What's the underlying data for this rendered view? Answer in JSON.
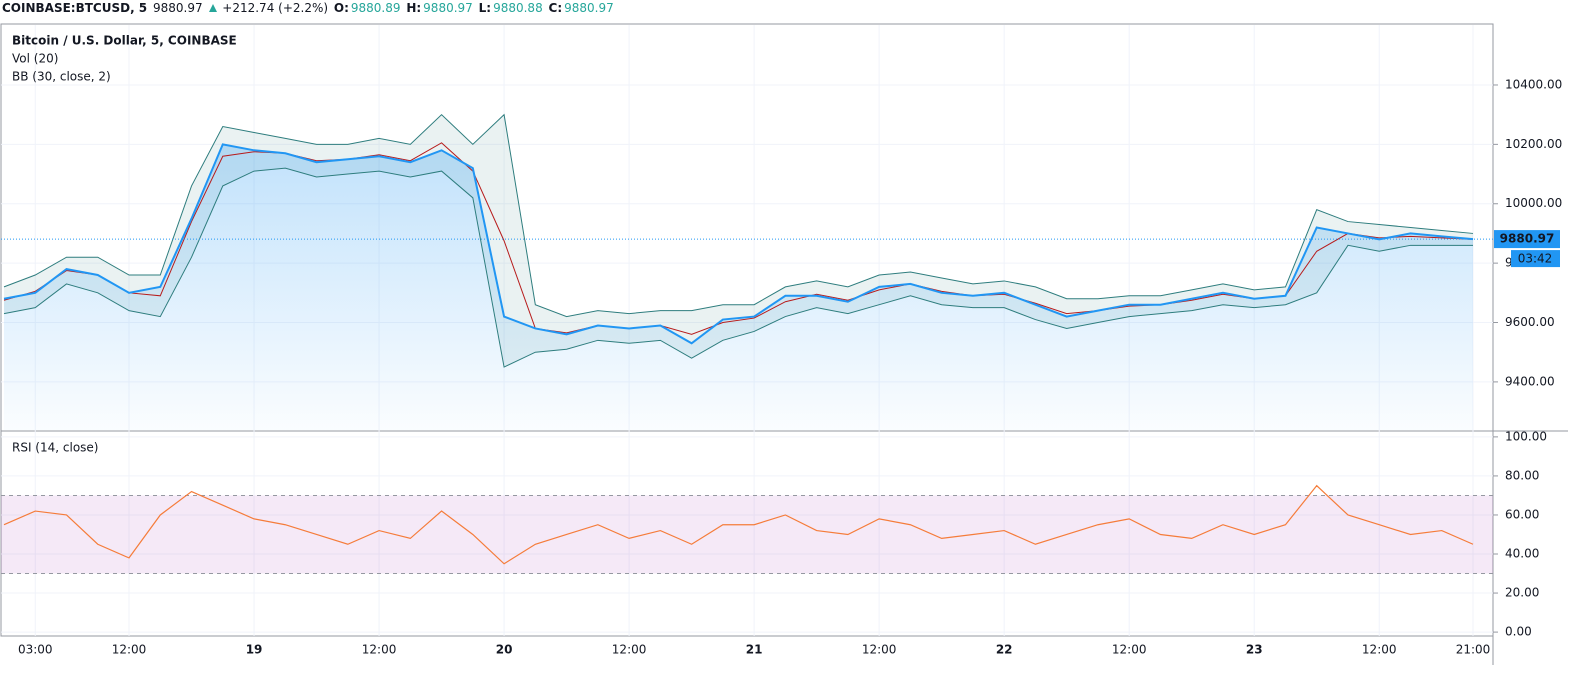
{
  "header": {
    "symbol": "COINBASE:BTCUSD, 5",
    "last": 9880.97,
    "change": "+212.74 (+2.2%)",
    "open_label": "O:",
    "open": 9880.89,
    "high_label": "H:",
    "high": 9880.97,
    "low_label": "L:",
    "low": 9880.88,
    "close_label": "C:",
    "close": 9880.97
  },
  "chart_data": [
    {
      "type": "line",
      "title": "Bitcoin / U.S. Dollar, 5, COINBASE",
      "annotations": [
        "Vol (20)"
      ],
      "price": {
        "color": "#2196f3",
        "values": [
          9680,
          9700,
          9780,
          9760,
          9700,
          9720,
          9950,
          10200,
          10180,
          10170,
          10140,
          10150,
          10160,
          10140,
          10180,
          10120,
          9620,
          9580,
          9560,
          9590,
          9580,
          9590,
          9530,
          9610,
          9620,
          9690,
          9690,
          9670,
          9720,
          9730,
          9700,
          9690,
          9700,
          9660,
          9620,
          9640,
          9660,
          9660,
          9680,
          9700,
          9680,
          9690,
          9920,
          9900,
          9880,
          9900,
          9890,
          9881
        ]
      },
      "bb": {
        "name": "BB (30, close, 2)",
        "color": "#2e7d7e",
        "basis_color": "#b71c1c",
        "upper": [
          9720,
          9760,
          9820,
          9820,
          9760,
          9760,
          10060,
          10260,
          10240,
          10220,
          10200,
          10200,
          10220,
          10200,
          10300,
          10200,
          10300,
          9660,
          9620,
          9640,
          9630,
          9640,
          9640,
          9660,
          9660,
          9720,
          9740,
          9720,
          9760,
          9770,
          9750,
          9730,
          9740,
          9720,
          9680,
          9680,
          9690,
          9690,
          9710,
          9730,
          9710,
          9720,
          9980,
          9940,
          9930,
          9920,
          9910,
          9900
        ],
        "basis": [
          9675,
          9705,
          9775,
          9760,
          9700,
          9690,
          9940,
          10160,
          10175,
          10170,
          10145,
          10150,
          10165,
          10145,
          10205,
          10110,
          9875,
          9580,
          9565,
          9590,
          9580,
          9590,
          9560,
          9600,
          9615,
          9670,
          9695,
          9675,
          9710,
          9730,
          9705,
          9690,
          9695,
          9665,
          9630,
          9640,
          9655,
          9660,
          9675,
          9695,
          9680,
          9690,
          9840,
          9900,
          9885,
          9890,
          9885,
          9880
        ],
        "lower": [
          9630,
          9650,
          9730,
          9700,
          9640,
          9620,
          9820,
          10060,
          10110,
          10120,
          10090,
          10100,
          10110,
          10090,
          10110,
          10020,
          9450,
          9500,
          9510,
          9540,
          9530,
          9540,
          9480,
          9540,
          9570,
          9620,
          9650,
          9630,
          9660,
          9690,
          9660,
          9650,
          9650,
          9610,
          9580,
          9600,
          9620,
          9630,
          9640,
          9660,
          9650,
          9660,
          9700,
          9860,
          9840,
          9860,
          9860,
          9860
        ]
      },
      "last_price": 9880.97,
      "countdown": "03:42",
      "ylim": [
        9238,
        10602
      ],
      "yticks": [
        {
          "value": 9400,
          "label": "9400.00"
        },
        {
          "value": 9600,
          "label": "9600.00"
        },
        {
          "value": 9800,
          "label": "9800.00"
        },
        {
          "value": 10000,
          "label": "10000.00"
        },
        {
          "value": 10200,
          "label": "10200.00"
        },
        {
          "value": 10400,
          "label": "10400.00"
        }
      ],
      "grid": true
    },
    {
      "type": "line",
      "title": "RSI (14, close)",
      "color": "#f57c3a",
      "band": [
        30,
        70
      ],
      "band_color": "#9c27b0",
      "categories": [
        null,
        "03:00",
        null,
        null,
        "12:00",
        null,
        null,
        null,
        "19",
        null,
        null,
        null,
        "12:00",
        null,
        null,
        null,
        "20",
        null,
        null,
        null,
        "12:00",
        null,
        null,
        null,
        "21",
        null,
        null,
        null,
        "12:00",
        null,
        null,
        null,
        "22",
        null,
        null,
        null,
        "12:00",
        null,
        null,
        null,
        "23",
        null,
        null,
        null,
        "12:00",
        null,
        null,
        "21:00"
      ],
      "values": [
        55,
        62,
        60,
        45,
        38,
        60,
        72,
        65,
        58,
        55,
        50,
        45,
        52,
        48,
        62,
        50,
        35,
        45,
        50,
        55,
        48,
        52,
        45,
        55,
        55,
        60,
        52,
        50,
        58,
        55,
        48,
        50,
        52,
        45,
        50,
        55,
        58,
        50,
        48,
        55,
        50,
        55,
        75,
        60,
        55,
        50,
        52,
        45
      ],
      "ylim": [
        -2,
        102.5
      ],
      "yticks": [
        {
          "value": 0,
          "label": "0.00"
        },
        {
          "value": 20,
          "label": "20.00"
        },
        {
          "value": 40,
          "label": "40.00"
        },
        {
          "value": 60,
          "label": "60.00"
        },
        {
          "value": 80,
          "label": "80.00"
        },
        {
          "value": 100,
          "label": "100.00"
        }
      ],
      "grid": true
    }
  ]
}
